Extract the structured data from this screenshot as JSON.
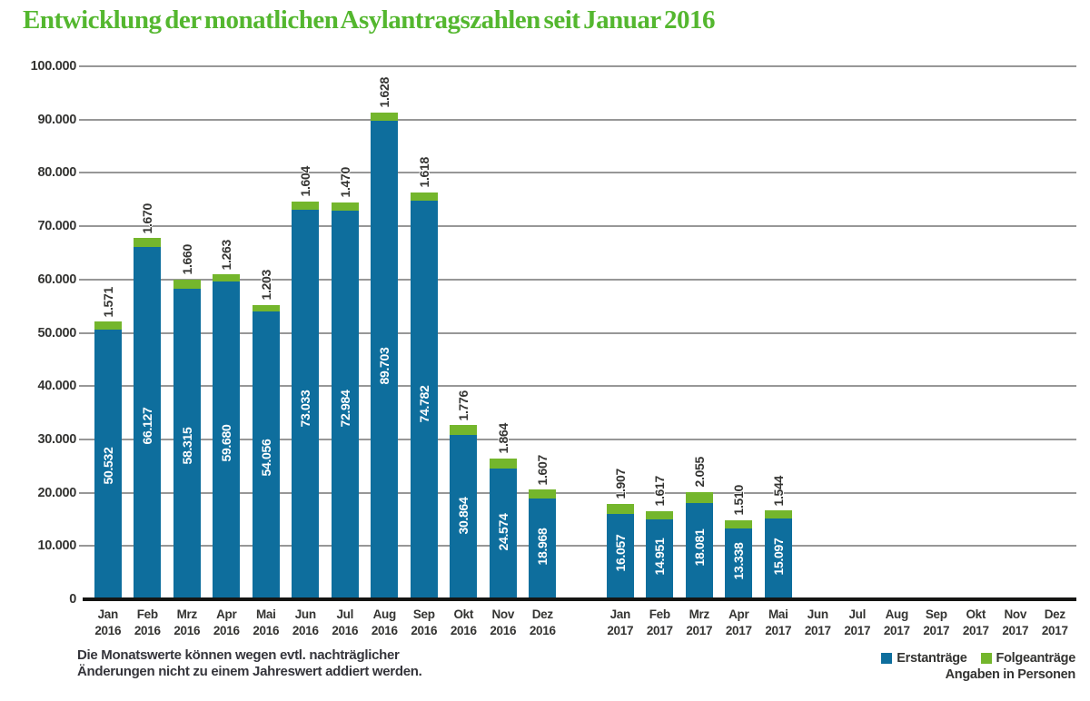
{
  "title": "Entwicklung der monatlichen Asylantragszahlen seit Januar 2016",
  "footnote": {
    "line1": "Die Monatswerte können wegen evtl. nachträglicher",
    "line2": "Änderungen nicht zu einem Jahreswert addiert werden."
  },
  "colors": {
    "title_green": "#54b72f",
    "bar_blue": "#0e6e9d",
    "bar_green": "#74b62c",
    "text_dark": "#343432",
    "gridline": "#979797",
    "axis": "#151513"
  },
  "chart_data": {
    "type": "bar",
    "stacked": true,
    "title": "Entwicklung der monatlichen Asylantragszahlen seit Januar 2016",
    "ylim": [
      0,
      100000
    ],
    "grid": true,
    "ytick_labels": [
      "100.000",
      "90.000",
      "80.000",
      "70.000",
      "60.000",
      "50.000",
      "40.000",
      "30.000",
      "20.000",
      "10.000",
      "0"
    ],
    "legend": [
      "Erstanträge",
      "Folgeanträge"
    ],
    "legend_position": "bottom-right",
    "legend_note": "Angaben in Personen",
    "series_names": [
      "Erstanträge",
      "Folgeanträge"
    ],
    "months": [
      {
        "month": "Jan",
        "year": "2016",
        "erst": 50532,
        "folge": 1571,
        "erst_label": "50.532",
        "folge_label": "1.571"
      },
      {
        "month": "Feb",
        "year": "2016",
        "erst": 66127,
        "folge": 1670,
        "erst_label": "66.127",
        "folge_label": "1.670"
      },
      {
        "month": "Mrz",
        "year": "2016",
        "erst": 58315,
        "folge": 1660,
        "erst_label": "58.315",
        "folge_label": "1.660"
      },
      {
        "month": "Apr",
        "year": "2016",
        "erst": 59680,
        "folge": 1263,
        "erst_label": "59.680",
        "folge_label": "1.263"
      },
      {
        "month": "Mai",
        "year": "2016",
        "erst": 54056,
        "folge": 1203,
        "erst_label": "54.056",
        "folge_label": "1.203"
      },
      {
        "month": "Jun",
        "year": "2016",
        "erst": 73033,
        "folge": 1604,
        "erst_label": "73.033",
        "folge_label": "1.604"
      },
      {
        "month": "Jul",
        "year": "2016",
        "erst": 72984,
        "folge": 1470,
        "erst_label": "72.984",
        "folge_label": "1.470"
      },
      {
        "month": "Aug",
        "year": "2016",
        "erst": 89703,
        "folge": 1628,
        "erst_label": "89.703",
        "folge_label": "1.628"
      },
      {
        "month": "Sep",
        "year": "2016",
        "erst": 74782,
        "folge": 1618,
        "erst_label": "74.782",
        "folge_label": "1.618"
      },
      {
        "month": "Okt",
        "year": "2016",
        "erst": 30864,
        "folge": 1776,
        "erst_label": "30.864",
        "folge_label": "1.776"
      },
      {
        "month": "Nov",
        "year": "2016",
        "erst": 24574,
        "folge": 1864,
        "erst_label": "24.574",
        "folge_label": "1.864"
      },
      {
        "month": "Dez",
        "year": "2016",
        "erst": 18968,
        "folge": 1607,
        "erst_label": "18.968",
        "folge_label": "1.607"
      },
      {
        "month": "Jan",
        "year": "2017",
        "erst": 16057,
        "folge": 1907,
        "erst_label": "16.057",
        "folge_label": "1.907"
      },
      {
        "month": "Feb",
        "year": "2017",
        "erst": 14951,
        "folge": 1617,
        "erst_label": "14.951",
        "folge_label": "1.617"
      },
      {
        "month": "Mrz",
        "year": "2017",
        "erst": 18081,
        "folge": 2055,
        "erst_label": "18.081",
        "folge_label": "2.055"
      },
      {
        "month": "Apr",
        "year": "2017",
        "erst": 13338,
        "folge": 1510,
        "erst_label": "13.338",
        "folge_label": "1.510"
      },
      {
        "month": "Mai",
        "year": "2017",
        "erst": 15097,
        "folge": 1544,
        "erst_label": "15.097",
        "folge_label": "1.544"
      },
      {
        "month": "Jun",
        "year": "2017",
        "erst": null,
        "folge": null,
        "erst_label": "",
        "folge_label": ""
      },
      {
        "month": "Jul",
        "year": "2017",
        "erst": null,
        "folge": null,
        "erst_label": "",
        "folge_label": ""
      },
      {
        "month": "Aug",
        "year": "2017",
        "erst": null,
        "folge": null,
        "erst_label": "",
        "folge_label": ""
      },
      {
        "month": "Sep",
        "year": "2017",
        "erst": null,
        "folge": null,
        "erst_label": "",
        "folge_label": ""
      },
      {
        "month": "Okt",
        "year": "2017",
        "erst": null,
        "folge": null,
        "erst_label": "",
        "folge_label": ""
      },
      {
        "month": "Nov",
        "year": "2017",
        "erst": null,
        "folge": null,
        "erst_label": "",
        "folge_label": ""
      },
      {
        "month": "Dez",
        "year": "2017",
        "erst": null,
        "folge": null,
        "erst_label": "",
        "folge_label": ""
      }
    ]
  }
}
